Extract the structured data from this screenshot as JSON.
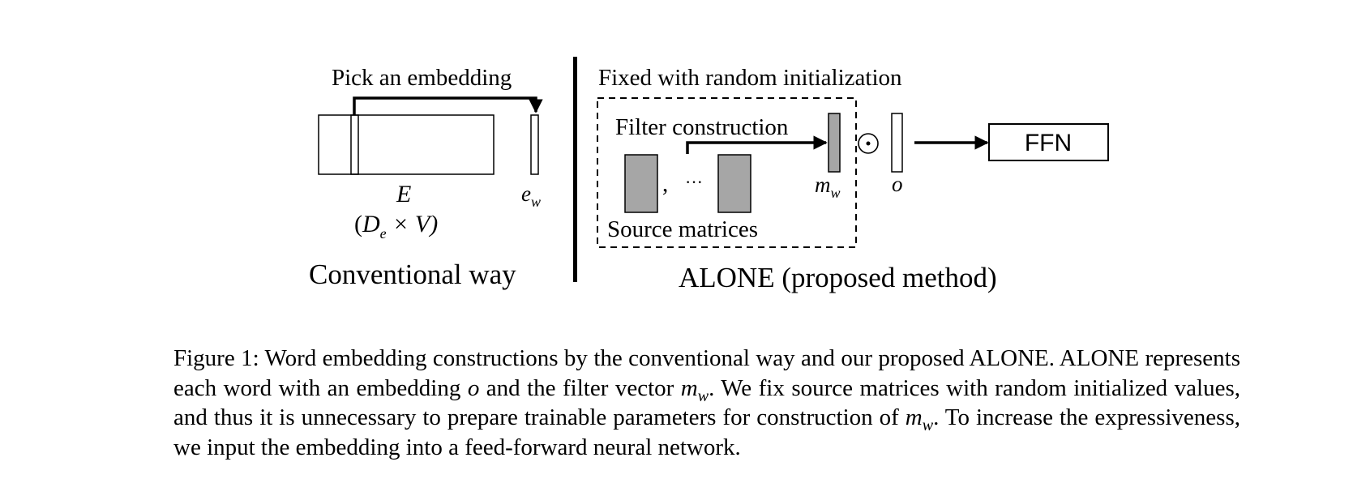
{
  "figure": {
    "conventional": {
      "pick_label": "Pick an embedding",
      "matrix_label": "E",
      "dims_open": "(",
      "dims_D": "D",
      "dims_sub": "e",
      "dims_rest": " × V)",
      "vector_label": "e",
      "vector_sub": "w",
      "title": "Conventional way"
    },
    "alone": {
      "fixed_label": "Fixed with random initialization",
      "filter_label": "Filter construction",
      "comma": ",",
      "dots": "···",
      "source_label": "Source matrices",
      "filter_vector_label": "m",
      "filter_vector_sub": "w",
      "odot": "⊙",
      "embedding_label": "o",
      "ffn_label": "FFN",
      "title": "ALONE (proposed method)"
    },
    "colors": {
      "gray_fill": "#a6a6a6",
      "stroke": "#000000"
    }
  },
  "caption": {
    "p1": "Figure 1: Word embedding constructions by the conventional way and our proposed ALONE. ALONE represents each word with an embedding ",
    "o": "o",
    "p2": " and the filter vector ",
    "m": "m",
    "w": "w",
    "p3": ". We fix source matrices with random initialized values, and thus it is unnecessary to prepare trainable parameters for construction of ",
    "m2": "m",
    "w2": "w",
    "p4": ". To increase the expressiveness, we input the embedding into a feed-forward neural network."
  }
}
